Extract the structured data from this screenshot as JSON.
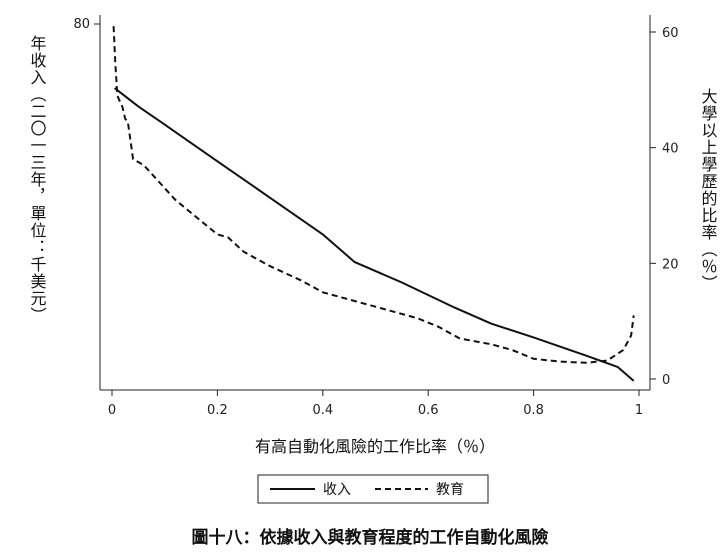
{
  "chart_data": {
    "type": "line",
    "xlabel": "有高自動化風險的工作比率（％）",
    "ylabel_left": "年收入（二〇一三年，單位：千美元）",
    "ylabel_right": "大學以上學歷的比率（％）",
    "caption": "圖十八：依據收入與教育程度的工作自動化風險",
    "x_ticks": [
      "0",
      "0.2",
      "0.4",
      "0.6",
      "0.8",
      "1"
    ],
    "y_left_ticks": [
      "80"
    ],
    "y_right_ticks": [
      "0",
      "20",
      "40",
      "60"
    ],
    "x_range": [
      0,
      1
    ],
    "y_left_range": [
      0,
      80
    ],
    "y_right_range": [
      0,
      63
    ],
    "legend_position": "bottom",
    "series": [
      {
        "name": "收入",
        "axis": "left",
        "style": "solid",
        "x": [
          0.005,
          0.05,
          0.1,
          0.2,
          0.3,
          0.4,
          0.46,
          0.55,
          0.65,
          0.72,
          0.8,
          0.9,
          0.96,
          0.99
        ],
        "y": [
          66,
          62,
          58,
          50,
          42,
          34,
          28,
          23.5,
          18,
          14.5,
          11.5,
          7.5,
          5,
          2
        ]
      },
      {
        "name": "教育",
        "axis": "right",
        "style": "dashed",
        "x": [
          0.003,
          0.006,
          0.01,
          0.02,
          0.025,
          0.03,
          0.04,
          0.06,
          0.08,
          0.12,
          0.16,
          0.2,
          0.22,
          0.25,
          0.3,
          0.36,
          0.4,
          0.5,
          0.58,
          0.62,
          0.66,
          0.72,
          0.76,
          0.8,
          0.85,
          0.9,
          0.94,
          0.97,
          0.985,
          0.99
        ],
        "y": [
          61,
          55,
          49,
          47,
          45,
          44.5,
          38,
          37,
          35,
          31,
          28,
          25,
          24.5,
          22,
          19.5,
          17,
          15,
          12.5,
          10.5,
          9,
          7,
          6,
          5,
          3.5,
          3,
          2.8,
          3.2,
          5,
          7.5,
          11
        ]
      }
    ]
  }
}
